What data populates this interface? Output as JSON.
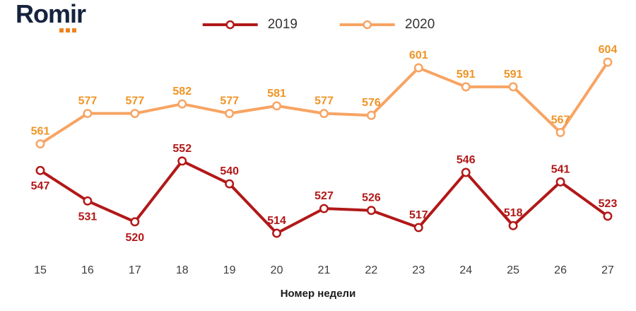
{
  "logo": {
    "text": "Romir",
    "dot_color": "#f08221",
    "text_color": "#16233e"
  },
  "legend": [
    {
      "label": "2019",
      "color": "#b21818"
    },
    {
      "label": "2020",
      "color": "#f7a463"
    }
  ],
  "chart_data": {
    "type": "line",
    "x": [
      15,
      16,
      17,
      18,
      19,
      20,
      21,
      22,
      23,
      24,
      25,
      26,
      27
    ],
    "xlabel": "Номер недели",
    "title": "",
    "grid": false,
    "legend_position": "top-center",
    "marker": "open-circle",
    "ylim": [
      505,
      615
    ],
    "tick_color": "#3c3c3c",
    "series": [
      {
        "name": "2019",
        "color": "#b21818",
        "label_color": "#b21818",
        "values": [
          547,
          531,
          520,
          552,
          540,
          514,
          527,
          526,
          517,
          546,
          518,
          541,
          523
        ],
        "label_positions": [
          "below",
          "below",
          "below",
          "above",
          "above",
          "above",
          "above",
          "above",
          "above",
          "above",
          "above",
          "above",
          "above"
        ]
      },
      {
        "name": "2020",
        "color": "#f7a463",
        "label_color": "#ef9426",
        "values": [
          561,
          577,
          577,
          582,
          577,
          581,
          577,
          576,
          601,
          591,
          591,
          567,
          604
        ],
        "label_positions": [
          "above",
          "above",
          "above",
          "above",
          "above",
          "above",
          "above",
          "above",
          "above",
          "above",
          "above",
          "above",
          "above"
        ]
      }
    ]
  }
}
